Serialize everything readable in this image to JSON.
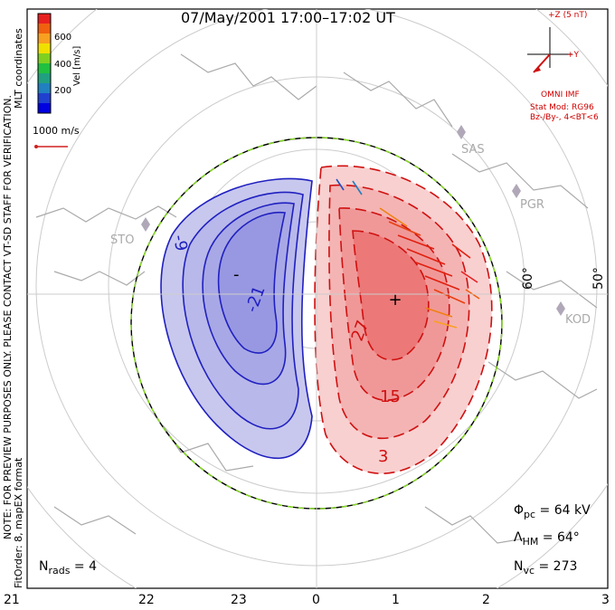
{
  "header": {
    "title": "07/May/2001 17:00–17:02 UT"
  },
  "sidebar": {
    "coords": "MLT coordinates",
    "note": "NOTE: FOR PREVIEW PURPOSES ONLY. PLEASE CONTACT VT-SD STAFF FOR VERIFICATION.",
    "fit": "FitOrder: 8, mapEX format"
  },
  "colorbar": {
    "label": "Vel [m/s]",
    "ticks": [
      "600",
      "400",
      "200"
    ],
    "colors": [
      "#e82020",
      "#f06010",
      "#f8a020",
      "#f0e000",
      "#80d020",
      "#20c040",
      "#20a080",
      "#2080c0",
      "#2040d0",
      "#0000e0"
    ]
  },
  "vector_scale": {
    "label": "1000 m/s"
  },
  "imf": {
    "z_label": "+Z (5 nT)",
    "y_label": "+Y",
    "source": "OMNI IMF",
    "model": "Stat Mod: RG96",
    "condition": "Bz-/By-, 4<BT<6"
  },
  "map": {
    "stations": [
      "SAS",
      "PGR",
      "KOD",
      "STO"
    ],
    "lat_labels": [
      "60°",
      "50°"
    ],
    "mlt_ticks": [
      "21",
      "22",
      "23",
      "0",
      "1",
      "2",
      "3"
    ],
    "contour_labels": [
      "-9",
      "-21",
      "27",
      "15",
      "3",
      "-"
    ],
    "plus_marker": "+",
    "colors": {
      "negative": "#2020c0",
      "positive": "#d01010",
      "boundary": "#88dd22",
      "land": "#aaaaaa"
    }
  },
  "stats": {
    "phi_symbol": "Φ",
    "phi_sub": "pc",
    "phi_value": "= 64 kV",
    "lambda_symbol": "Λ",
    "lambda_sub": "HM",
    "lambda_value": "= 64°",
    "nvc_symbol": "N",
    "nvc_sub": "vc",
    "nvc_value": "= 273",
    "nrads_symbol": "N",
    "nrads_sub": "rads",
    "nrads_value": "= 4"
  }
}
